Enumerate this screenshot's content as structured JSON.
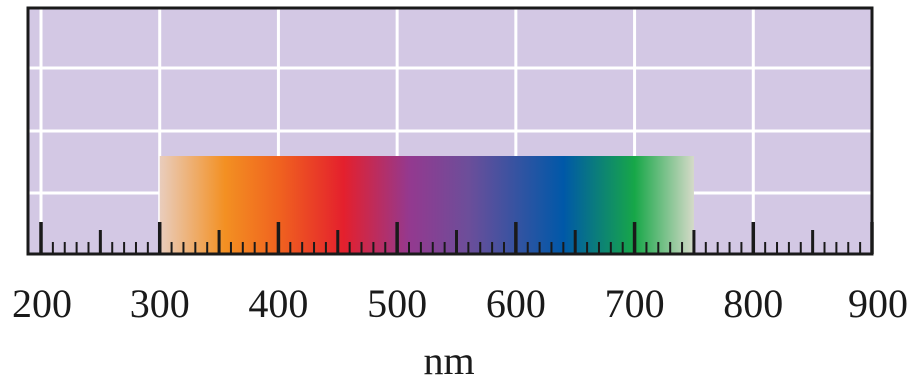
{
  "scale": {
    "min": 200,
    "max": 900,
    "major_step": 100,
    "mid_step": 50,
    "minor_step": 10,
    "unit": "nm",
    "tick_labels": [
      "200",
      "300",
      "400",
      "500",
      "600",
      "700",
      "800",
      "900"
    ]
  },
  "spectrum_band": {
    "start": 300,
    "end": 750,
    "color_stops": [
      {
        "value": 300,
        "color": "#e9cdbd"
      },
      {
        "value": 355,
        "color": "#f39022"
      },
      {
        "value": 400,
        "color": "#f0631f"
      },
      {
        "value": 455,
        "color": "#e4202d"
      },
      {
        "value": 510,
        "color": "#94398f"
      },
      {
        "value": 560,
        "color": "#6c4e9a"
      },
      {
        "value": 640,
        "color": "#0058a8"
      },
      {
        "value": 700,
        "color": "#17a748"
      },
      {
        "value": 750,
        "color": "#d5dac8"
      }
    ]
  },
  "colors": {
    "panel_background": "#d3c8e4",
    "grid_lines": "#ffffff",
    "frame": "#1a1a1a",
    "ticks": "#1a1a1a"
  }
}
